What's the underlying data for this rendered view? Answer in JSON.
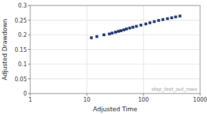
{
  "chart_data": {
    "type": "scatter",
    "xlabel": "Adjusted Time",
    "ylabel": "Adjusted Drawdown",
    "x": [
      12,
      15,
      20,
      25,
      28,
      32,
      36,
      40,
      45,
      50,
      57,
      65,
      75,
      90,
      110,
      130,
      155,
      185,
      220,
      265,
      315,
      370,
      440
    ],
    "values": [
      0.19,
      0.194,
      0.2,
      0.203,
      0.206,
      0.209,
      0.212,
      0.214,
      0.217,
      0.22,
      0.223,
      0.226,
      0.229,
      0.233,
      0.237,
      0.241,
      0.245,
      0.249,
      0.252,
      0.255,
      0.258,
      0.261,
      0.264
    ],
    "color": "#1a2e6b",
    "marker": "square",
    "log": "x",
    "xlim": [
      1,
      1000
    ],
    "ylim": [
      0,
      0.3
    ],
    "xticks": [
      1,
      10,
      100,
      1000
    ],
    "yticks": [
      0,
      0.05,
      0.1,
      0.15,
      0.2,
      0.25,
      0.3
    ],
    "grid": true,
    "annotations": [
      "step_test_out_rows"
    ]
  }
}
